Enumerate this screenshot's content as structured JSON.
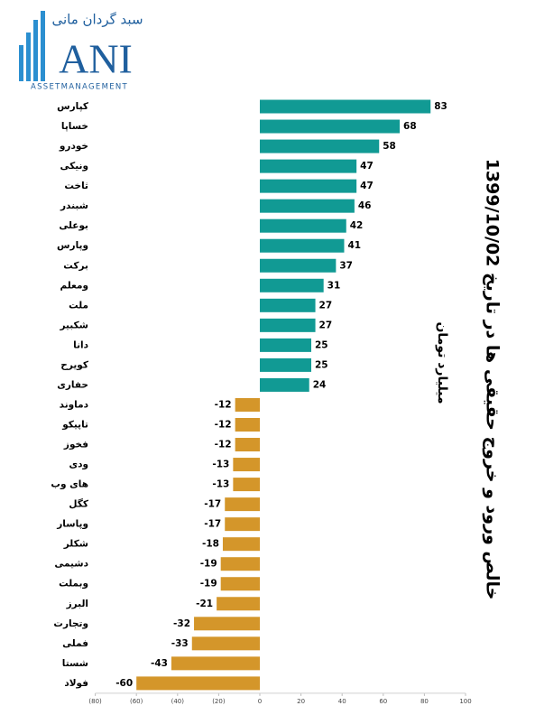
{
  "logo": {
    "persian_name": "سبد گردان مانی",
    "mark": "ANI",
    "tagline": "ASSETMANAGEMENT"
  },
  "chart_data": {
    "type": "bar",
    "orientation": "horizontal",
    "title": "خالص ورود و خروج حقیقی ها در تاریخ 1399/10/02",
    "subtitle": "میلیارد تومان",
    "categories": [
      "کپارس",
      "خساپا",
      "خودرو",
      "ونیکی",
      "ثاخت",
      "شبندر",
      "بوعلی",
      "وپارس",
      "برکت",
      "ومعلم",
      "ملت",
      "شکبیر",
      "دانا",
      "کویرح",
      "حفاری",
      "دماوند",
      "تاپیکو",
      "فخوز",
      "ودی",
      "های وب",
      "کگل",
      "وپاسار",
      "شکلر",
      "دشیمی",
      "وبملت",
      "البرز",
      "وتجارت",
      "فملی",
      "شستا",
      "فولاد"
    ],
    "values": [
      83,
      68,
      58,
      47,
      47,
      46,
      42,
      41,
      37,
      31,
      27,
      27,
      25,
      25,
      24,
      -12,
      -12,
      -12,
      -13,
      -13,
      -17,
      -17,
      -18,
      -19,
      -19,
      -21,
      -32,
      -33,
      -43,
      -60
    ],
    "positive_color": "#119a94",
    "negative_color": "#d4962a",
    "xlim": [
      -80,
      100
    ],
    "xticks": [
      {
        "value": -80,
        "label": "(80)"
      },
      {
        "value": -60,
        "label": "(60)"
      },
      {
        "value": -40,
        "label": "(40)"
      },
      {
        "value": -20,
        "label": "(20)"
      },
      0,
      20,
      40,
      60,
      80,
      100
    ],
    "negative_tick_label_color": "#c00000"
  }
}
